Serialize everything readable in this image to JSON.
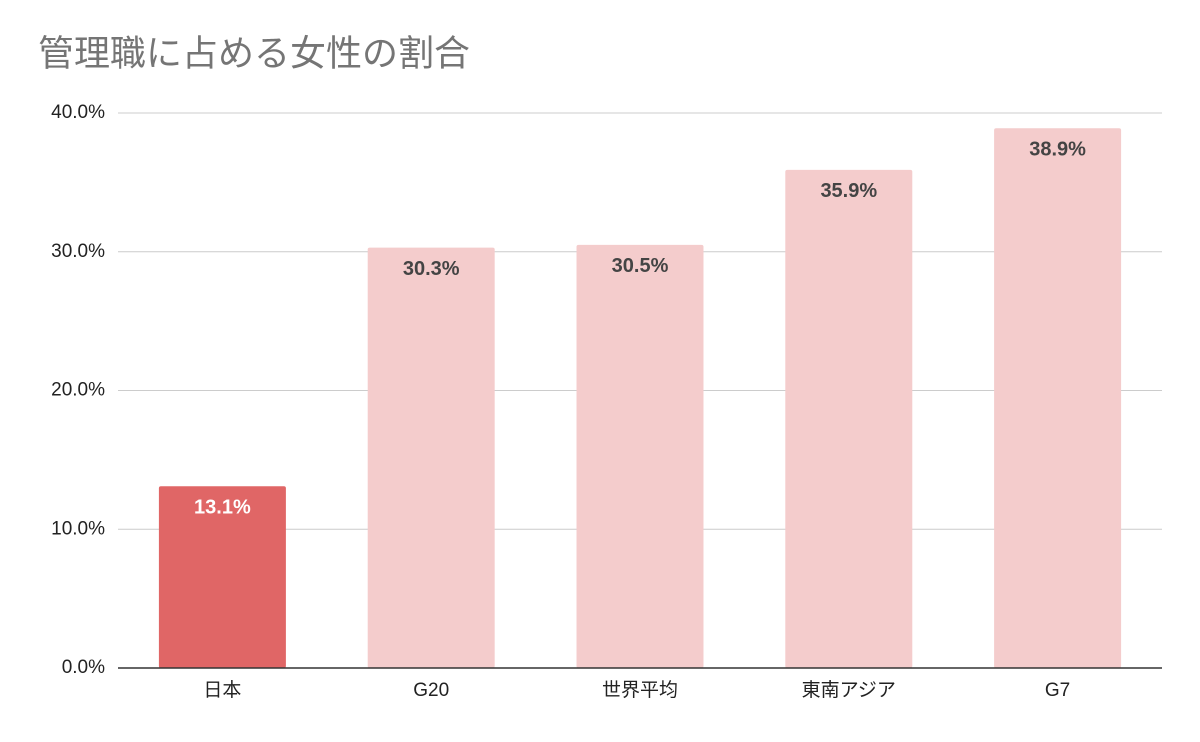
{
  "chart_data": {
    "type": "bar",
    "title": "管理職に占める女性の割合",
    "categories": [
      "日本",
      "G20",
      "世界平均",
      "東南アジア",
      "G7"
    ],
    "values": [
      13.1,
      30.3,
      30.5,
      35.9,
      38.9
    ],
    "value_labels": [
      "13.1%",
      "30.3%",
      "30.5%",
      "35.9%",
      "38.9%"
    ],
    "colors": [
      "#e06666",
      "#f4cccc",
      "#f4cccc",
      "#f4cccc",
      "#f4cccc"
    ],
    "ylim": [
      0,
      40
    ],
    "yticks": [
      {
        "value": 0,
        "label": "0.0%"
      },
      {
        "value": 10,
        "label": "10.0%"
      },
      {
        "value": 20,
        "label": "20.0%"
      },
      {
        "value": 30,
        "label": "30.0%"
      },
      {
        "value": 40,
        "label": "40.0%"
      }
    ],
    "grid": true
  }
}
